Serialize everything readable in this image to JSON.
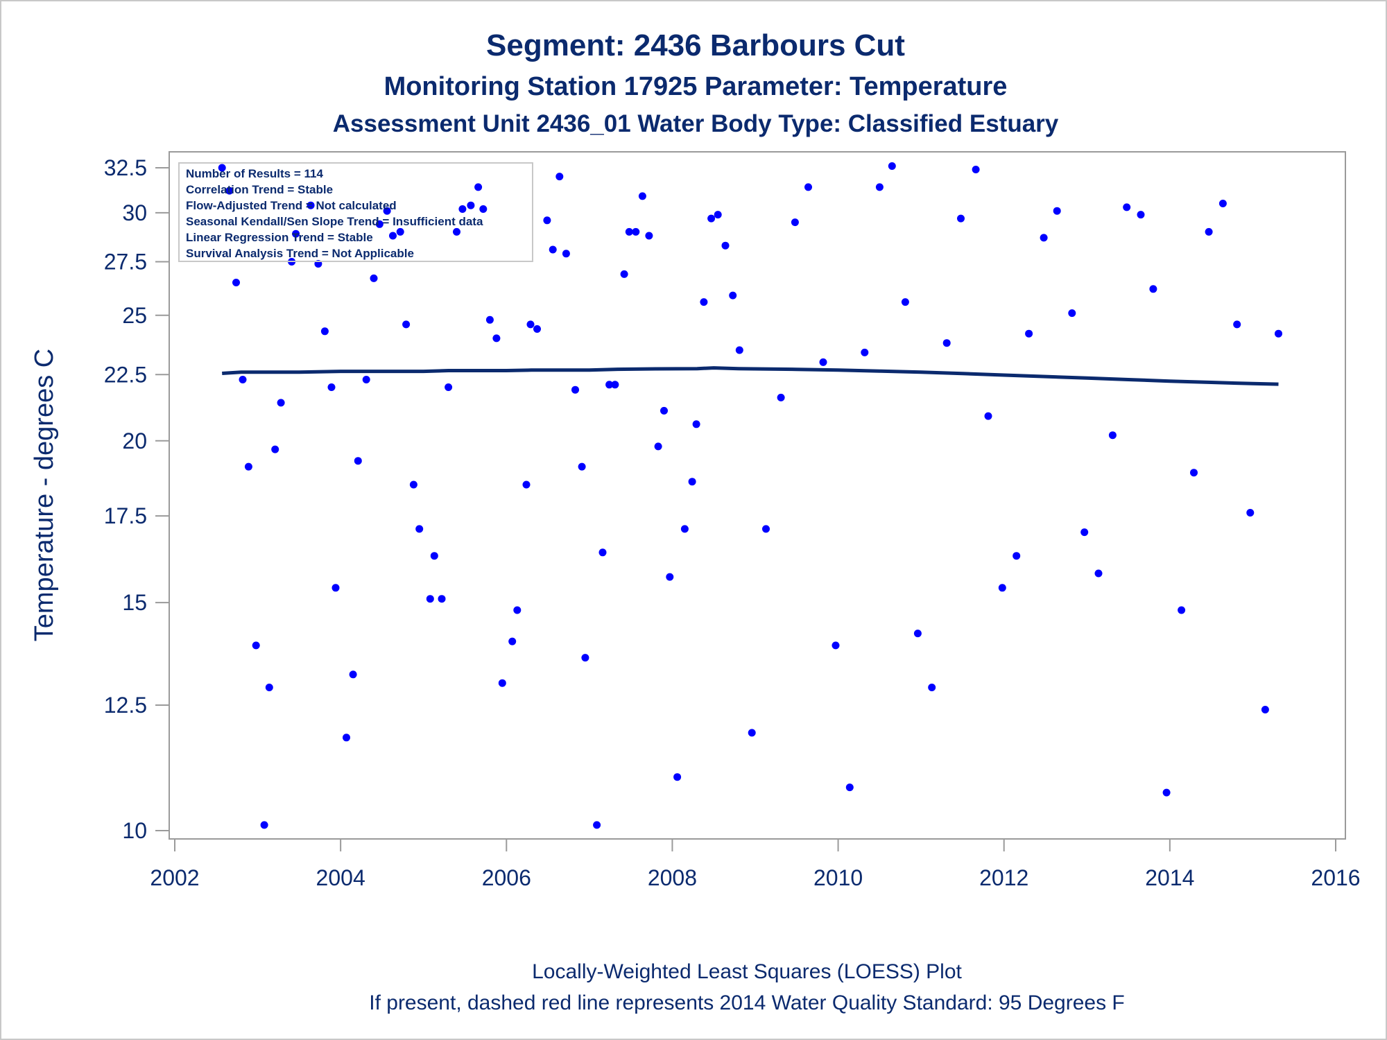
{
  "titles": {
    "line1": "Segment: 2436  Barbours Cut",
    "line2": "Monitoring Station 17925 Parameter: Temperature",
    "line3": "Assessment Unit 2436_01   Water Body Type: Classified Estuary"
  },
  "footnotes": {
    "line1": "Locally-Weighted Least Squares (LOESS) Plot",
    "line2": "If present, dashed red line represents 2014 Water Quality Standard: 95   Degrees F"
  },
  "stats_box": [
    "Number of Results = 114",
    "Correlation Trend = Stable",
    "Flow-Adjusted Trend = Not calculated",
    "Seasonal Kendall/Sen Slope Trend = Insufficient data",
    "Linear Regression Trend = Stable",
    "Survival Analysis Trend = Not Applicable"
  ],
  "colors": {
    "text": "#0b2a6e",
    "points": "#0000ff",
    "loess": "#0b2a6e",
    "axis": "#9a9a9a"
  },
  "chart_data": {
    "type": "scatter",
    "title": "Segment: 2436  Barbours Cut",
    "xlabel": "",
    "ylabel": "Temperature - degrees C",
    "xlim": [
      2002,
      2016
    ],
    "ylim": [
      10,
      32.5
    ],
    "y_scale": "log",
    "x_ticks": [
      2002,
      2004,
      2006,
      2008,
      2010,
      2012,
      2014,
      2016
    ],
    "y_ticks": [
      10,
      12.5,
      15,
      17.5,
      20,
      22.5,
      25,
      27.5,
      30,
      32.5
    ],
    "y_tick_labels": [
      "10",
      "12.5",
      "15",
      "17.5",
      "20",
      "22.5",
      "25",
      "27.5",
      "30",
      "32.5"
    ],
    "grid": false,
    "series": [
      {
        "name": "Temperature",
        "type": "scatter",
        "points": [
          [
            2002.57,
            32.5
          ],
          [
            2002.66,
            31.2
          ],
          [
            2002.74,
            26.5
          ],
          [
            2002.82,
            22.3
          ],
          [
            2002.89,
            19.1
          ],
          [
            2002.98,
            13.9
          ],
          [
            2003.08,
            10.1
          ],
          [
            2003.14,
            12.9
          ],
          [
            2003.21,
            19.7
          ],
          [
            2003.28,
            21.4
          ],
          [
            2003.41,
            27.5
          ],
          [
            2003.46,
            28.9
          ],
          [
            2003.64,
            30.4
          ],
          [
            2003.73,
            27.4
          ],
          [
            2003.81,
            24.3
          ],
          [
            2003.89,
            22.0
          ],
          [
            2003.94,
            15.4
          ],
          [
            2004.07,
            11.8
          ],
          [
            2004.15,
            13.2
          ],
          [
            2004.21,
            19.3
          ],
          [
            2004.31,
            22.3
          ],
          [
            2004.4,
            26.7
          ],
          [
            2004.47,
            29.4
          ],
          [
            2004.56,
            30.1
          ],
          [
            2004.63,
            28.8
          ],
          [
            2004.72,
            29.0
          ],
          [
            2004.79,
            24.6
          ],
          [
            2004.88,
            18.5
          ],
          [
            2004.95,
            17.1
          ],
          [
            2005.08,
            15.1
          ],
          [
            2005.13,
            16.3
          ],
          [
            2005.22,
            15.1
          ],
          [
            2005.3,
            22.0
          ],
          [
            2005.4,
            29.0
          ],
          [
            2005.47,
            30.2
          ],
          [
            2005.57,
            30.4
          ],
          [
            2005.66,
            31.4
          ],
          [
            2005.72,
            30.2
          ],
          [
            2005.8,
            24.8
          ],
          [
            2005.88,
            24.0
          ],
          [
            2005.95,
            13.0
          ],
          [
            2006.07,
            14.0
          ],
          [
            2006.13,
            14.8
          ],
          [
            2006.24,
            18.5
          ],
          [
            2006.29,
            24.6
          ],
          [
            2006.37,
            24.4
          ],
          [
            2006.49,
            29.6
          ],
          [
            2006.56,
            28.1
          ],
          [
            2006.64,
            32.0
          ],
          [
            2006.72,
            27.9
          ],
          [
            2006.83,
            21.9
          ],
          [
            2006.91,
            19.1
          ],
          [
            2006.95,
            13.6
          ],
          [
            2007.09,
            10.1
          ],
          [
            2007.16,
            16.4
          ],
          [
            2007.24,
            22.1
          ],
          [
            2007.31,
            22.1
          ],
          [
            2007.42,
            26.9
          ],
          [
            2007.48,
            29.0
          ],
          [
            2007.56,
            29.0
          ],
          [
            2007.64,
            30.9
          ],
          [
            2007.72,
            28.8
          ],
          [
            2007.83,
            19.8
          ],
          [
            2007.9,
            21.1
          ],
          [
            2007.97,
            15.7
          ],
          [
            2008.06,
            11.0
          ],
          [
            2008.15,
            17.1
          ],
          [
            2008.24,
            18.6
          ],
          [
            2008.29,
            20.6
          ],
          [
            2008.38,
            25.6
          ],
          [
            2008.47,
            29.7
          ],
          [
            2008.55,
            29.9
          ],
          [
            2008.64,
            28.3
          ],
          [
            2008.73,
            25.9
          ],
          [
            2008.81,
            23.5
          ],
          [
            2008.96,
            11.9
          ],
          [
            2009.13,
            17.1
          ],
          [
            2009.31,
            21.6
          ],
          [
            2009.48,
            29.5
          ],
          [
            2009.64,
            31.4
          ],
          [
            2009.82,
            23.0
          ],
          [
            2009.97,
            13.9
          ],
          [
            2010.14,
            10.8
          ],
          [
            2010.32,
            23.4
          ],
          [
            2010.5,
            31.4
          ],
          [
            2010.65,
            32.6
          ],
          [
            2010.81,
            25.6
          ],
          [
            2010.96,
            14.2
          ],
          [
            2011.13,
            12.9
          ],
          [
            2011.31,
            23.8
          ],
          [
            2011.48,
            29.7
          ],
          [
            2011.66,
            32.4
          ],
          [
            2011.81,
            20.9
          ],
          [
            2011.98,
            15.4
          ],
          [
            2012.15,
            16.3
          ],
          [
            2012.3,
            24.2
          ],
          [
            2012.48,
            28.7
          ],
          [
            2012.64,
            30.1
          ],
          [
            2012.82,
            25.1
          ],
          [
            2012.97,
            17.0
          ],
          [
            2013.14,
            15.8
          ],
          [
            2013.31,
            20.2
          ],
          [
            2013.48,
            30.3
          ],
          [
            2013.65,
            29.9
          ],
          [
            2013.8,
            26.2
          ],
          [
            2013.96,
            10.7
          ],
          [
            2014.14,
            14.8
          ],
          [
            2014.29,
            18.9
          ],
          [
            2014.47,
            29.0
          ],
          [
            2014.64,
            30.5
          ],
          [
            2014.81,
            24.6
          ],
          [
            2014.97,
            17.6
          ],
          [
            2015.15,
            12.4
          ],
          [
            2015.31,
            24.2
          ]
        ]
      },
      {
        "name": "LOESS",
        "type": "line",
        "points": [
          [
            2002.57,
            22.55
          ],
          [
            2002.8,
            22.6
          ],
          [
            2003.5,
            22.6
          ],
          [
            2004.0,
            22.63
          ],
          [
            2005.0,
            22.63
          ],
          [
            2005.3,
            22.66
          ],
          [
            2006.0,
            22.66
          ],
          [
            2006.3,
            22.68
          ],
          [
            2007.0,
            22.68
          ],
          [
            2007.3,
            22.71
          ],
          [
            2007.8,
            22.73
          ],
          [
            2008.3,
            22.74
          ],
          [
            2008.5,
            22.77
          ],
          [
            2008.8,
            22.74
          ],
          [
            2009.5,
            22.71
          ],
          [
            2010.0,
            22.68
          ],
          [
            2010.5,
            22.64
          ],
          [
            2011.0,
            22.6
          ],
          [
            2011.5,
            22.54
          ],
          [
            2012.0,
            22.48
          ],
          [
            2012.5,
            22.42
          ],
          [
            2013.0,
            22.36
          ],
          [
            2013.5,
            22.3
          ],
          [
            2014.0,
            22.24
          ],
          [
            2014.5,
            22.19
          ],
          [
            2015.0,
            22.14
          ],
          [
            2015.31,
            22.12
          ]
        ]
      }
    ]
  }
}
